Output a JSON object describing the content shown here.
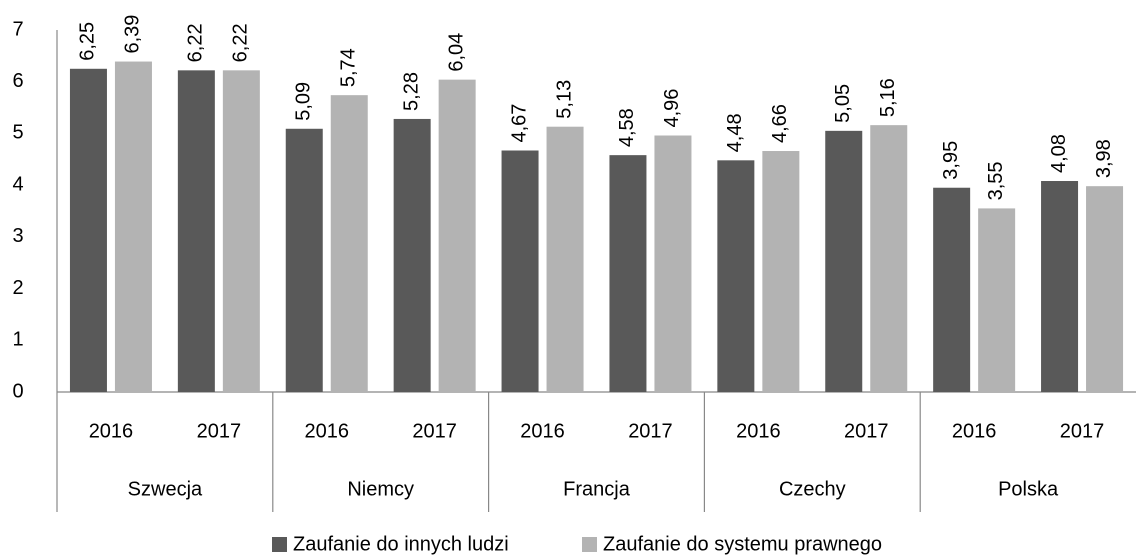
{
  "chart_data": {
    "type": "bar",
    "categories": [
      "2016",
      "2017",
      "2016",
      "2017",
      "2016",
      "2017",
      "2016",
      "2017",
      "2016",
      "2017"
    ],
    "groups": [
      "Szwecja",
      "Niemcy",
      "Francja",
      "Czechy",
      "Polska"
    ],
    "series": [
      {
        "name": "Zaufanie do innych ludzi",
        "color": "#595959",
        "values": [
          6.25,
          6.22,
          5.09,
          5.28,
          4.67,
          4.58,
          4.48,
          5.05,
          3.95,
          4.08
        ],
        "value_labels": [
          "6,25",
          "6,22",
          "5,09",
          "5,28",
          "4,67",
          "4,58",
          "4,48",
          "5,05",
          "3,95",
          "4,08"
        ]
      },
      {
        "name": "Zaufanie do systemu prawnego",
        "color": "#b3b3b3",
        "values": [
          6.39,
          6.22,
          5.74,
          6.04,
          5.13,
          4.96,
          4.66,
          5.16,
          3.55,
          3.98
        ],
        "value_labels": [
          "6,39",
          "6,22",
          "5,74",
          "6,04",
          "5,13",
          "4,96",
          "4,66",
          "5,16",
          "3,55",
          "3,98"
        ]
      }
    ],
    "ylim": [
      0,
      7
    ],
    "yticks": [
      0,
      1,
      2,
      3,
      4,
      5,
      6,
      7
    ],
    "grid": false,
    "legend": "bottom"
  }
}
